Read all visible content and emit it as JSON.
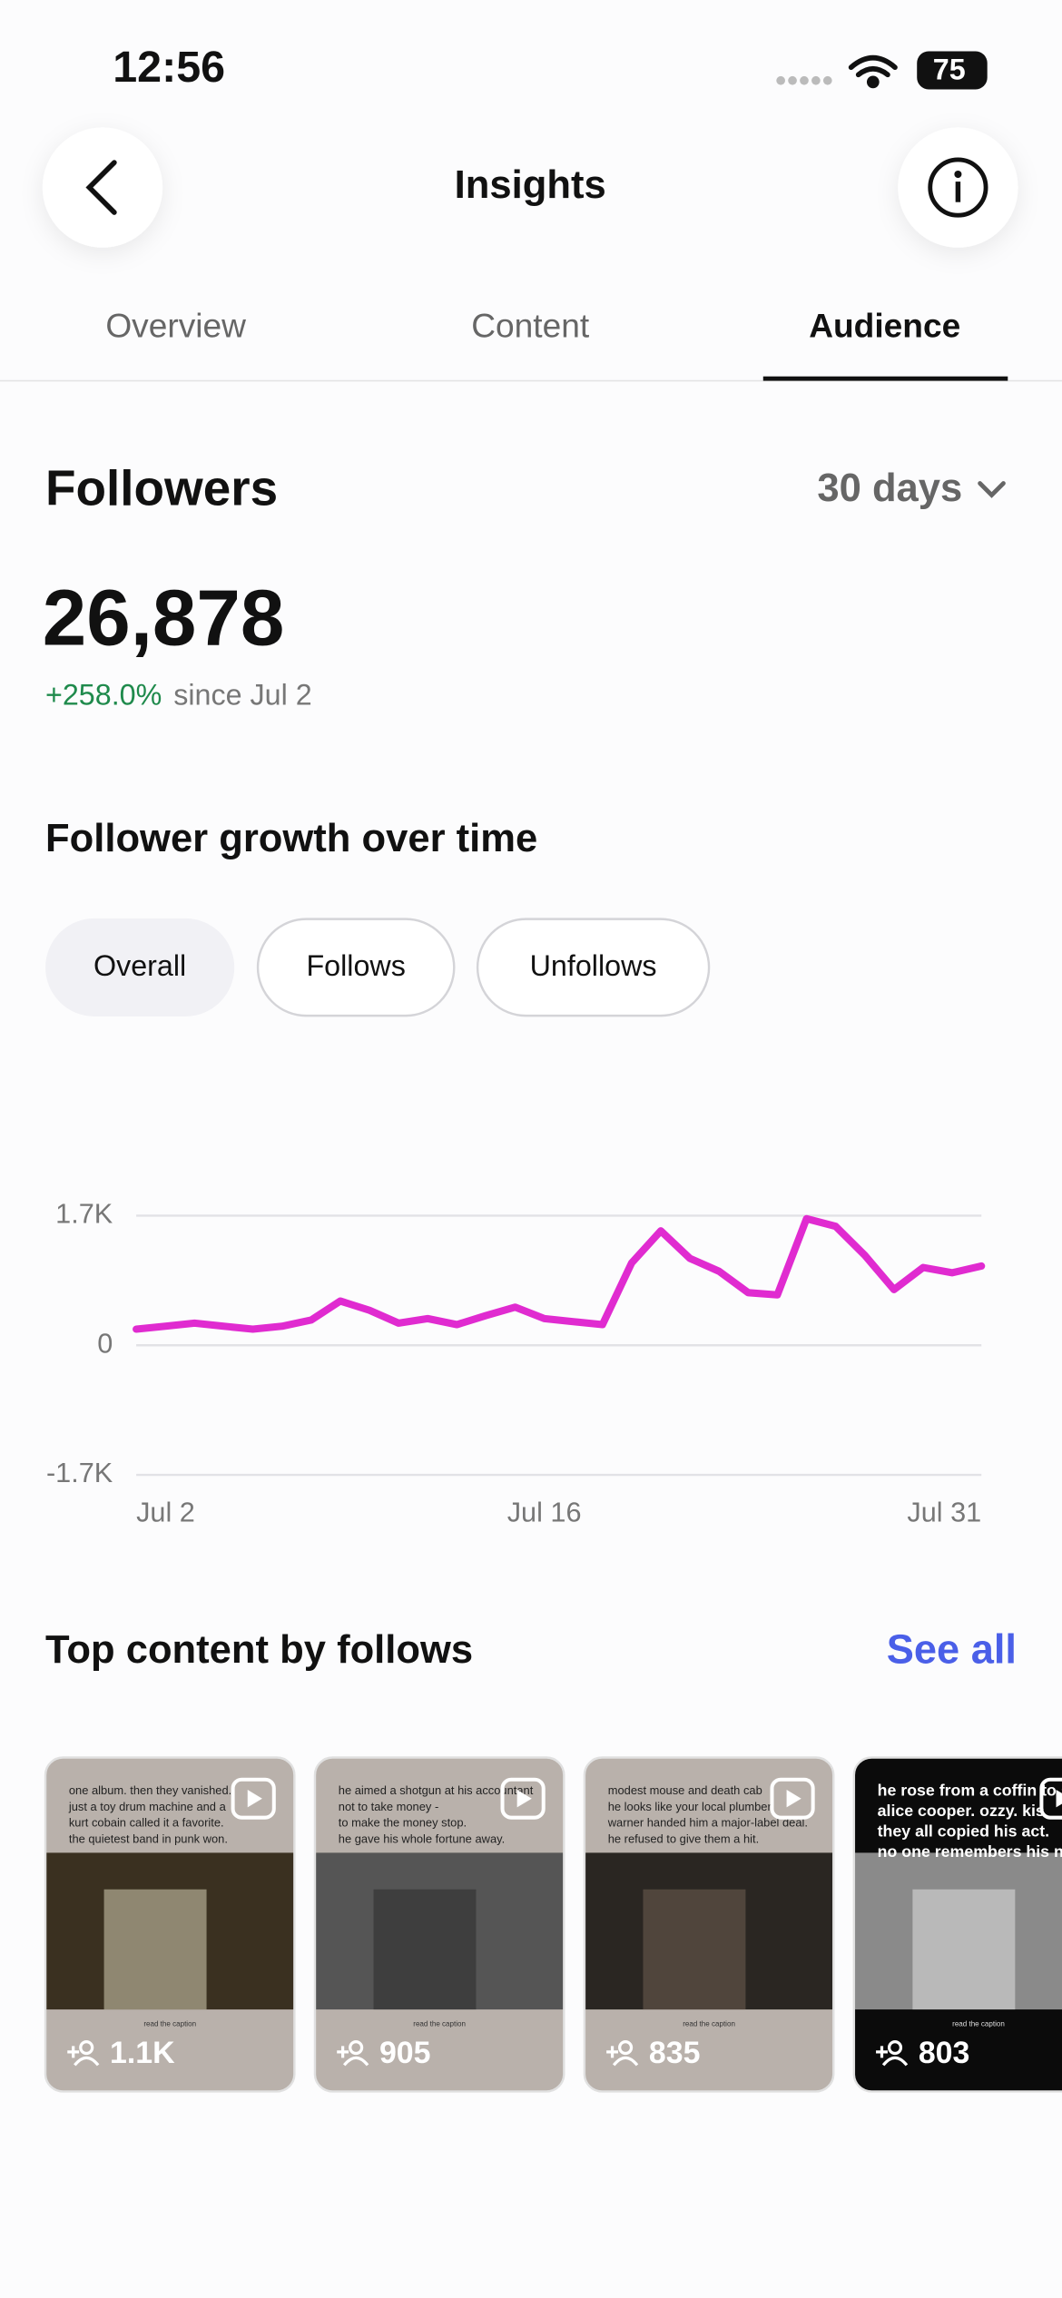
{
  "status": {
    "time": "12:56",
    "battery": "75"
  },
  "header": {
    "title": "Insights"
  },
  "tabs": [
    "Overview",
    "Content",
    "Audience"
  ],
  "followers": {
    "title": "Followers",
    "period": "30 days",
    "count": "26,878",
    "change": "+258.0%",
    "since": "since Jul 2"
  },
  "growth": {
    "title": "Follower growth over time",
    "filters": [
      "Overall",
      "Follows",
      "Unfollows"
    ]
  },
  "chart_data": {
    "type": "line",
    "color": "#e02bd0",
    "categories": [
      "Jul 2",
      null,
      null,
      null,
      null,
      null,
      null,
      null,
      null,
      null,
      null,
      null,
      null,
      null,
      "Jul 16",
      null,
      null,
      null,
      null,
      null,
      null,
      null,
      null,
      null,
      null,
      null,
      null,
      null,
      null,
      "Jul 31"
    ],
    "values": [
      212,
      250,
      290,
      250,
      212,
      250,
      330,
      580,
      460,
      290,
      350,
      270,
      390,
      500,
      350,
      310,
      270,
      1080,
      1500,
      1140,
      970,
      690,
      660,
      1660,
      1560,
      1180,
      730,
      1020,
      950,
      1040
    ],
    "ylim": [
      -1700,
      1700
    ],
    "yticks": [
      {
        "value": 1700,
        "label": "1.7K"
      },
      0,
      {
        "value": -1700,
        "label": "-1.7K"
      }
    ],
    "grid": true
  },
  "top_content": {
    "title": "Top content by follows",
    "see_all": "See all",
    "items": [
      {
        "caption": [
          "one album. then they vanished.",
          "just a toy drum machine and a",
          "kurt cobain called it a favorite.",
          "the quietest band in punk won."
        ],
        "footer": "read the caption",
        "follows": "1.1K"
      },
      {
        "caption": [
          "he aimed a shotgun at his accountant",
          "not to take money -",
          "to make the money stop.",
          "he gave his whole fortune away."
        ],
        "footer": "read the caption",
        "follows": 905
      },
      {
        "caption": [
          "modest mouse and death cab",
          "he looks like your local plumber",
          "warner handed him a major-label deal.",
          "he refused to give them a hit."
        ],
        "footer": "read the caption",
        "follows": 835
      },
      {
        "caption": [
          "he rose from a coffin to s",
          "alice cooper. ozzy. kis",
          "they all copied his act.",
          "no one remembers his na"
        ],
        "footer": "read the caption",
        "follows": 803
      }
    ]
  }
}
